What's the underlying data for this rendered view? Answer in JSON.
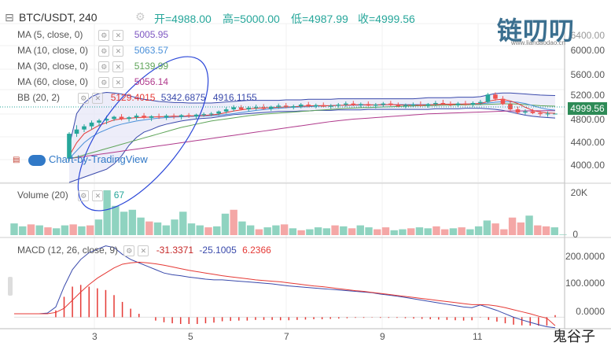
{
  "header": {
    "symbol": "BTC/USDT, 240",
    "open_label": "开=4988.00",
    "high_label": "高=5000.00",
    "low_label": "低=4987.99",
    "close_label": "收=4999.56"
  },
  "indicators": [
    {
      "label": "MA (5, close, 0)",
      "value": "5005.95",
      "color": "#7e57c2"
    },
    {
      "label": "MA (10, close, 0)",
      "value": "5063.57",
      "color": "#4a90d9"
    },
    {
      "label": "MA (30, close, 0)",
      "value": "5139.99",
      "color": "#5fa55a"
    },
    {
      "label": "MA (60, close, 0)",
      "value": "5056.14",
      "color": "#b03a8c"
    }
  ],
  "bb": {
    "label": "BB (20, 2)",
    "values": [
      "5129.4015",
      "5342.6875",
      "4916.1155"
    ],
    "color": "#e53935"
  },
  "volume": {
    "label": "Volume (20)",
    "value": "67"
  },
  "macd": {
    "label": "MACD (12, 26, close, 9)",
    "values": [
      "-31.3371",
      "-25.1005",
      "6.2366"
    ]
  },
  "price_axis": [
    "6000.00",
    "5600.00",
    "5200.00",
    "4800.00",
    "4400.00",
    "4000.00"
  ],
  "price_axis_top": "6400.00",
  "volume_axis": [
    "20K",
    "0"
  ],
  "macd_axis": [
    "200.0000",
    "100.0000",
    "0.0000"
  ],
  "x_axis": [
    "3",
    "5",
    "7",
    "9",
    "11"
  ],
  "last_price": "4999.56",
  "attribution": "Chart-by-TradingView",
  "logo_text": "链叨叨",
  "logo_url": "www.liandaodao.cn",
  "corner_watermark": "鬼谷子",
  "colors": {
    "up": "#26a69a",
    "down": "#ef5350",
    "bb_fill": "#e6e6f7"
  },
  "chart_data": [
    {
      "type": "candlestick",
      "title": "BTC/USDT, 240",
      "ylim": [
        3700,
        6700
      ],
      "candles": [
        [
          4150,
          4650,
          4100,
          4620
        ],
        [
          4620,
          4780,
          4560,
          4700
        ],
        [
          4700,
          4800,
          4650,
          4760
        ],
        [
          4760,
          4870,
          4700,
          4830
        ],
        [
          4830,
          4900,
          4760,
          4870
        ],
        [
          4870,
          4960,
          4800,
          4900
        ],
        [
          4900,
          4960,
          4860,
          4940
        ],
        [
          4940,
          4990,
          4870,
          4900
        ],
        [
          4900,
          4950,
          4850,
          4930
        ],
        [
          4930,
          5000,
          4880,
          4960
        ],
        [
          4960,
          5010,
          4900,
          4920
        ],
        [
          4920,
          4970,
          4860,
          4950
        ],
        [
          4950,
          5000,
          4900,
          4930
        ],
        [
          4930,
          4990,
          4880,
          4960
        ],
        [
          4960,
          5000,
          4900,
          4940
        ],
        [
          4940,
          4990,
          4890,
          4970
        ],
        [
          4970,
          5010,
          4920,
          4950
        ],
        [
          4950,
          5000,
          4900,
          4980
        ],
        [
          4980,
          5020,
          4940,
          4990
        ],
        [
          4990,
          5030,
          4950,
          5000
        ],
        [
          5000,
          5060,
          4960,
          5040
        ],
        [
          5040,
          5120,
          5000,
          5080
        ],
        [
          5080,
          5160,
          5040,
          5120
        ],
        [
          5120,
          5160,
          5060,
          5080
        ],
        [
          5080,
          5140,
          5040,
          5110
        ],
        [
          5110,
          5170,
          5060,
          5120
        ],
        [
          5120,
          5180,
          5070,
          5090
        ],
        [
          5090,
          5150,
          5050,
          5130
        ],
        [
          5130,
          5190,
          5090,
          5150
        ],
        [
          5150,
          5200,
          5100,
          5120
        ],
        [
          5120,
          5170,
          5080,
          5140
        ],
        [
          5140,
          5200,
          5100,
          5170
        ],
        [
          5170,
          5220,
          5120,
          5140
        ],
        [
          5140,
          5190,
          5100,
          5160
        ],
        [
          5160,
          5210,
          5120,
          5130
        ],
        [
          5130,
          5180,
          5090,
          5150
        ],
        [
          5150,
          5200,
          5110,
          5170
        ],
        [
          5170,
          5230,
          5130,
          5190
        ],
        [
          5190,
          5240,
          5140,
          5160
        ],
        [
          5160,
          5210,
          5120,
          5180
        ],
        [
          5180,
          5230,
          5140,
          5150
        ],
        [
          5150,
          5200,
          5100,
          5170
        ],
        [
          5170,
          5220,
          5130,
          5190
        ],
        [
          5190,
          5240,
          5140,
          5160
        ],
        [
          5160,
          5210,
          5120,
          5140
        ],
        [
          5140,
          5190,
          5100,
          5160
        ],
        [
          5160,
          5210,
          5120,
          5170
        ],
        [
          5170,
          5230,
          5130,
          5150
        ],
        [
          5150,
          5200,
          5110,
          5180
        ],
        [
          5180,
          5240,
          5140,
          5200
        ],
        [
          5200,
          5260,
          5160,
          5180
        ],
        [
          5180,
          5230,
          5140,
          5160
        ],
        [
          5160,
          5220,
          5120,
          5190
        ],
        [
          5190,
          5240,
          5150,
          5170
        ],
        [
          5170,
          5230,
          5130,
          5200
        ],
        [
          5200,
          5260,
          5160,
          5220
        ],
        [
          5220,
          5390,
          5200,
          5360
        ],
        [
          5360,
          5400,
          5240,
          5280
        ],
        [
          5280,
          5330,
          5160,
          5180
        ],
        [
          5180,
          5230,
          5050,
          5080
        ],
        [
          5080,
          5130,
          4990,
          5020
        ],
        [
          5020,
          5080,
          4980,
          5040
        ],
        [
          5040,
          5090,
          4990,
          5010
        ],
        [
          5010,
          5060,
          4950,
          4990
        ],
        [
          4990,
          5040,
          4940,
          5000
        ],
        [
          4988,
          5000,
          4988,
          5000
        ]
      ],
      "bb_upper": [
        4380,
        5000,
        5200,
        5320,
        5380,
        5400,
        5390,
        5370,
        5340,
        5300,
        5270,
        5250,
        5230,
        5220,
        5210,
        5210,
        5200,
        5200,
        5200,
        5200,
        5210,
        5220,
        5230,
        5240,
        5250,
        5250,
        5250,
        5250,
        5250,
        5260,
        5260,
        5260,
        5270,
        5270,
        5270,
        5270,
        5280,
        5280,
        5280,
        5280,
        5280,
        5280,
        5280,
        5280,
        5280,
        5280,
        5280,
        5290,
        5300,
        5300,
        5300,
        5300,
        5310,
        5310,
        5310,
        5320,
        5350,
        5380,
        5390,
        5390,
        5380,
        5370,
        5360,
        5350,
        5345,
        5342
      ],
      "bb_lower": [
        3700,
        3750,
        3800,
        3850,
        3900,
        3950,
        4050,
        4200,
        4400,
        4550,
        4650,
        4700,
        4760,
        4800,
        4830,
        4860,
        4880,
        4900,
        4910,
        4920,
        4940,
        4960,
        4980,
        4990,
        5000,
        5010,
        5020,
        5030,
        5040,
        5040,
        5040,
        5050,
        5050,
        5060,
        5060,
        5060,
        5070,
        5070,
        5070,
        5070,
        5080,
        5080,
        5080,
        5080,
        5080,
        5080,
        5080,
        5080,
        5080,
        5090,
        5090,
        5090,
        5090,
        5100,
        5100,
        5100,
        5090,
        5080,
        5060,
        5030,
        5000,
        4970,
        4950,
        4935,
        4925,
        4916
      ],
      "ma5": [
        4200,
        4450,
        4620,
        4700,
        4780,
        4830,
        4880,
        4900,
        4910,
        4925,
        4930,
        4935,
        4940,
        4945,
        4950,
        4950,
        4955,
        4960,
        4965,
        4975,
        4990,
        5020,
        5050,
        5070,
        5090,
        5100,
        5110,
        5110,
        5120,
        5125,
        5130,
        5140,
        5145,
        5150,
        5150,
        5150,
        5155,
        5160,
        5165,
        5170,
        5165,
        5165,
        5170,
        5170,
        5165,
        5160,
        5160,
        5160,
        5165,
        5170,
        5175,
        5180,
        5180,
        5180,
        5185,
        5190,
        5230,
        5260,
        5270,
        5240,
        5190,
        5120,
        5060,
        5030,
        5010,
        5006
      ],
      "ma10": [
        4150,
        4300,
        4450,
        4560,
        4640,
        4700,
        4760,
        4800,
        4830,
        4860,
        4880,
        4900,
        4915,
        4925,
        4935,
        4940,
        4945,
        4950,
        4955,
        4960,
        4970,
        4985,
        5000,
        5020,
        5040,
        5060,
        5075,
        5090,
        5100,
        5110,
        5120,
        5125,
        5130,
        5140,
        5145,
        5150,
        5155,
        5155,
        5160,
        5160,
        5165,
        5165,
        5165,
        5170,
        5170,
        5170,
        5170,
        5170,
        5170,
        5170,
        5175,
        5175,
        5180,
        5180,
        5180,
        5185,
        5200,
        5215,
        5225,
        5225,
        5215,
        5190,
        5150,
        5110,
        5080,
        5064
      ],
      "ma30": [
        4150,
        4180,
        4220,
        4260,
        4300,
        4340,
        4380,
        4420,
        4460,
        4500,
        4540,
        4580,
        4620,
        4660,
        4700,
        4740,
        4770,
        4800,
        4830,
        4860,
        4880,
        4900,
        4920,
        4940,
        4960,
        4975,
        4990,
        5000,
        5010,
        5020,
        5030,
        5040,
        5050,
        5060,
        5070,
        5080,
        5090,
        5100,
        5105,
        5110,
        5115,
        5120,
        5125,
        5130,
        5135,
        5140,
        5145,
        5150,
        5150,
        5155,
        5160,
        5160,
        5165,
        5165,
        5170,
        5170,
        5175,
        5180,
        5185,
        5185,
        5180,
        5170,
        5160,
        5150,
        5145,
        5140
      ],
      "ma60": [
        4150,
        4170,
        4190,
        4210,
        4230,
        4250,
        4270,
        4290,
        4310,
        4330,
        4350,
        4370,
        4390,
        4410,
        4430,
        4450,
        4470,
        4490,
        4510,
        4530,
        4550,
        4570,
        4590,
        4610,
        4630,
        4650,
        4670,
        4690,
        4710,
        4730,
        4750,
        4770,
        4790,
        4810,
        4830,
        4850,
        4865,
        4880,
        4895,
        4905,
        4915,
        4925,
        4935,
        4945,
        4955,
        4965,
        4975,
        4985,
        4995,
        5000,
        5005,
        5010,
        5015,
        5020,
        5025,
        5030,
        5035,
        5040,
        5045,
        5050,
        5050,
        5052,
        5053,
        5054,
        5055,
        5056
      ]
    },
    {
      "type": "bar",
      "title": "Volume (20)",
      "ylim": [
        0,
        25000
      ],
      "values": [
        6000,
        4500,
        5500,
        5000,
        4000,
        3500,
        5000,
        5500,
        4500,
        5000,
        8000,
        23000,
        15000,
        12000,
        13000,
        9000,
        7000,
        6500,
        5000,
        8000,
        12000,
        6000,
        5000,
        4000,
        4500,
        11000,
        13000,
        7000,
        5000,
        3000,
        4000,
        5000,
        5500,
        3500,
        2500,
        3000,
        4000,
        3500,
        5000,
        4500,
        3500,
        5000,
        4000,
        3000,
        4000,
        2500,
        3000,
        3500,
        4000,
        3500,
        4500,
        3000,
        3500,
        4000,
        3000,
        4500,
        7500,
        6000,
        3000,
        9000,
        6500,
        10000,
        5000,
        4500,
        4000,
        300
      ],
      "up": [
        true,
        true,
        false,
        true,
        false,
        true,
        true,
        false,
        true,
        false,
        true,
        true,
        true,
        true,
        true,
        true,
        false,
        true,
        true,
        true,
        true,
        true,
        true,
        false,
        true,
        true,
        false,
        true,
        true,
        false,
        true,
        true,
        false,
        true,
        false,
        true,
        true,
        true,
        false,
        true,
        false,
        true,
        true,
        false,
        false,
        true,
        true,
        false,
        true,
        true,
        false,
        false,
        true,
        false,
        true,
        true,
        true,
        false,
        false,
        false,
        false,
        true,
        false,
        false,
        true,
        true
      ]
    },
    {
      "type": "line",
      "title": "MACD (12, 26, close, 9)",
      "ylim": [
        -20,
        230
      ],
      "macd": [
        10,
        10,
        10,
        10,
        12,
        30,
        90,
        140,
        170,
        190,
        200,
        210,
        205,
        185,
        170,
        160,
        150,
        140,
        130,
        125,
        122,
        118,
        115,
        112,
        110,
        110,
        108,
        106,
        104,
        102,
        100,
        98,
        95,
        92,
        90,
        88,
        86,
        84,
        82,
        80,
        78,
        76,
        74,
        72,
        68,
        65,
        62,
        58,
        54,
        50,
        46,
        42,
        38,
        34,
        30,
        28,
        36,
        28,
        20,
        10,
        0,
        -8,
        -15,
        -22,
        -28,
        -31
      ],
      "signal": [
        10,
        10,
        10,
        10,
        10,
        14,
        26,
        50,
        74,
        96,
        115,
        130,
        145,
        156,
        160,
        162,
        160,
        157,
        153,
        148,
        143,
        138,
        134,
        130,
        126,
        122,
        119,
        116,
        113,
        110,
        108,
        106,
        104,
        101,
        98,
        95,
        92,
        90,
        87,
        84,
        81,
        78,
        76,
        73,
        70,
        67,
        64,
        61,
        58,
        55,
        52,
        49,
        46,
        43,
        40,
        37,
        37,
        36,
        33,
        28,
        22,
        16,
        10,
        3,
        -3,
        -25
      ],
      "histogram": [
        0,
        0,
        0,
        0,
        0,
        20,
        60,
        90,
        95,
        90,
        85,
        80,
        65,
        45,
        25,
        10,
        0,
        -10,
        -15,
        -18,
        -20,
        -20,
        -20,
        -18,
        -16,
        -12,
        -11,
        -10,
        -10,
        -8,
        -8,
        -8,
        -9,
        -9,
        -8,
        -7,
        -6,
        -6,
        -5,
        -4,
        -3,
        -2,
        -2,
        -1,
        -2,
        -2,
        -2,
        -3,
        -4,
        -5,
        -6,
        -7,
        -8,
        -9,
        -10,
        -9,
        -1,
        -8,
        -13,
        -18,
        -22,
        -24,
        -25,
        -25,
        -25,
        6
      ]
    }
  ]
}
